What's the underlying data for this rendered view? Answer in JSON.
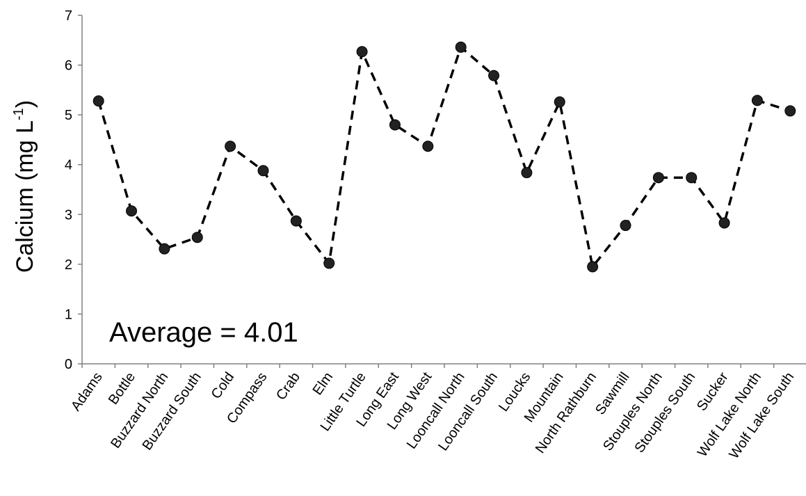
{
  "chart_data": {
    "type": "line",
    "title": "",
    "xlabel": "",
    "ylabel": "Calcium (mg L",
    "ylabel_superscript": "-1",
    "ylabel_close": ")",
    "ylim": [
      0,
      7
    ],
    "yticks": [
      "0",
      "1",
      "2",
      "3",
      "4",
      "5",
      "6",
      "7"
    ],
    "grid": false,
    "line_style": "dashed",
    "line_color": "#000000",
    "marker_color": "#222222",
    "categories": [
      "Adams",
      "Bottle",
      "Buzzard North",
      "Buzzard South",
      "Cold",
      "Compass",
      "Crab",
      "Elm",
      "Little Turtle",
      "Long East",
      "Long West",
      "Looncall North",
      "Looncall South",
      "Loucks",
      "Mountain",
      "North Rathburn",
      "Sawmill",
      "Stouples North",
      "Stouples South",
      "Sucker",
      "Wolf Lake North",
      "Wolf Lake South"
    ],
    "series": [
      {
        "values": [
          5.28,
          3.07,
          2.31,
          2.54,
          4.37,
          3.88,
          2.87,
          2.02,
          6.27,
          4.8,
          4.37,
          6.36,
          5.79,
          3.84,
          5.26,
          1.95,
          2.78,
          3.74,
          3.74,
          2.83,
          5.29,
          5.08
        ]
      }
    ],
    "annotations": [
      {
        "text": "Average = 4.01"
      }
    ]
  }
}
